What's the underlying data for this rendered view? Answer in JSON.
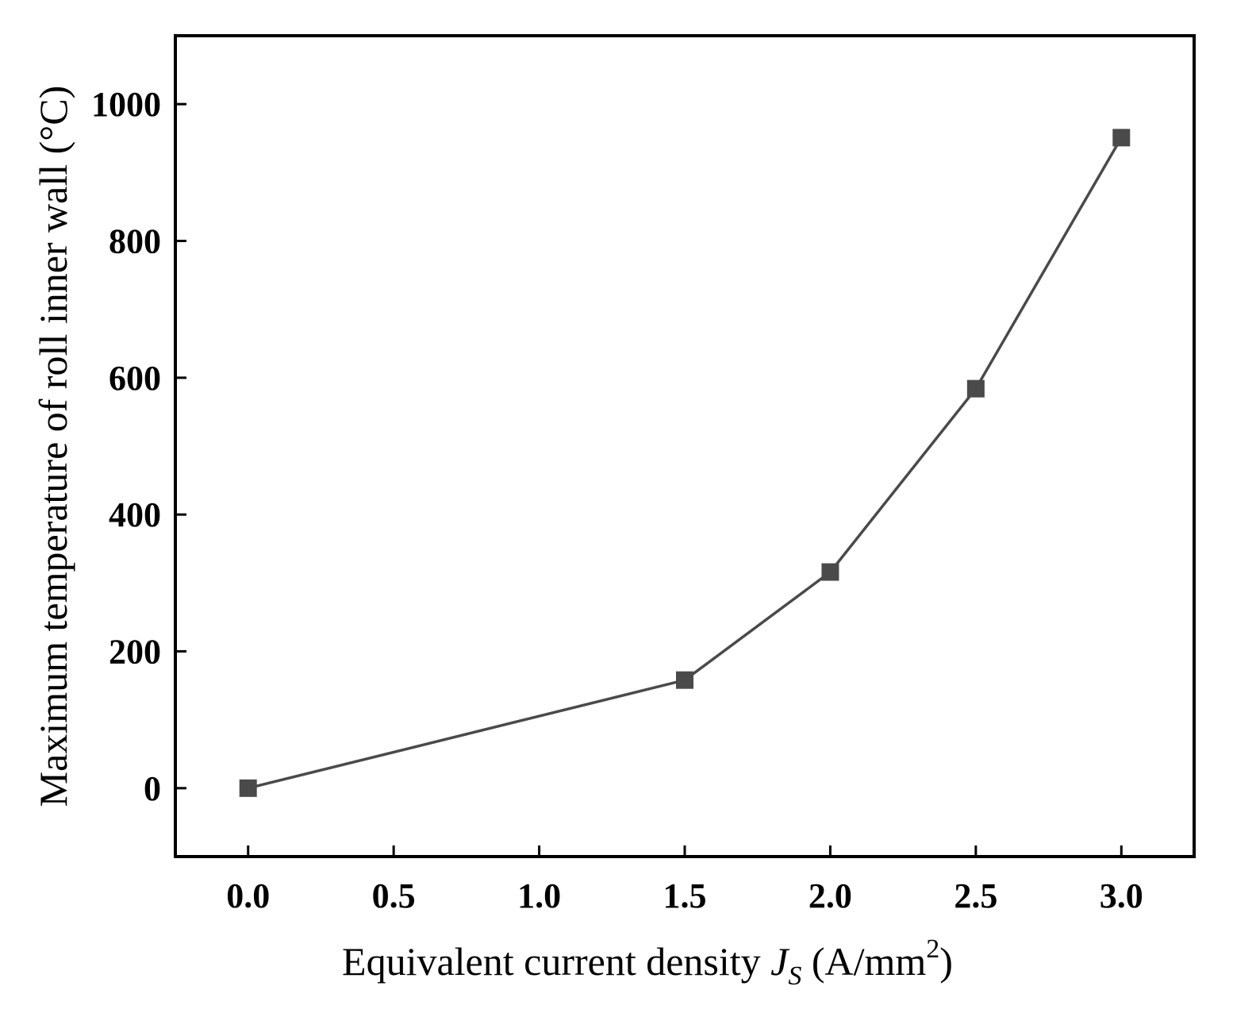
{
  "chart_data": {
    "type": "line",
    "title": "",
    "xlabel": "Equivalent current density",
    "xlabel_symbol": "J",
    "xlabel_subscript": "S",
    "xlabel_unit": "(A/mm",
    "xlabel_unit_sup": "2",
    "xlabel_unit_close": ")",
    "ylabel": "Maximum temperature of roll inner wall (°C)",
    "xlim": [
      -0.25,
      3.25
    ],
    "ylim": [
      -100,
      1100
    ],
    "xticks": [
      0.0,
      0.5,
      1.0,
      1.5,
      2.0,
      2.5,
      3.0
    ],
    "xtick_labels": [
      "0.0",
      "0.5",
      "1.0",
      "1.5",
      "2.0",
      "2.5",
      "3.0"
    ],
    "yticks": [
      0,
      200,
      400,
      600,
      800,
      1000
    ],
    "ytick_labels": [
      "0",
      "200",
      "400",
      "600",
      "800",
      "1000"
    ],
    "grid": false,
    "series": [
      {
        "x": [
          0.0,
          1.5,
          2.0,
          2.5,
          3.0
        ],
        "y": [
          0,
          158,
          316,
          584,
          951
        ],
        "marker": "square",
        "color": "#4a4a4a"
      }
    ]
  }
}
